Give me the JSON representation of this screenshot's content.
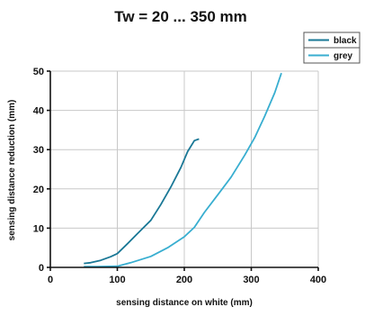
{
  "chart_data": {
    "type": "line",
    "title": "Tw = 20 ... 350 mm",
    "xlabel": "sensing distance on white (mm)",
    "ylabel": "sensing distance reduction (mm)",
    "xlim": [
      0,
      400
    ],
    "ylim": [
      0,
      50
    ],
    "xticks": [
      0,
      100,
      200,
      300,
      400
    ],
    "yticks": [
      0,
      10,
      20,
      30,
      40,
      50
    ],
    "grid": true,
    "legend": "top-right",
    "series": [
      {
        "name": "black",
        "color": "#1a7896",
        "x": [
          50,
          60,
          75,
          90,
          100,
          115,
          130,
          150,
          165,
          180,
          195,
          205,
          215,
          222
        ],
        "y": [
          1.0,
          1.2,
          1.8,
          2.7,
          3.5,
          6.0,
          8.6,
          12.0,
          16.0,
          20.5,
          25.5,
          29.5,
          32.3,
          32.7
        ]
      },
      {
        "name": "grey",
        "color": "#38aed0",
        "x": [
          50,
          70,
          100,
          120,
          150,
          175,
          200,
          215,
          230,
          250,
          270,
          290,
          305,
          320,
          335,
          345
        ],
        "y": [
          0.2,
          0.2,
          0.3,
          1.2,
          2.8,
          5.0,
          7.8,
          10.2,
          14.0,
          18.5,
          23.0,
          28.5,
          33.0,
          38.5,
          44.5,
          49.5
        ]
      }
    ]
  }
}
